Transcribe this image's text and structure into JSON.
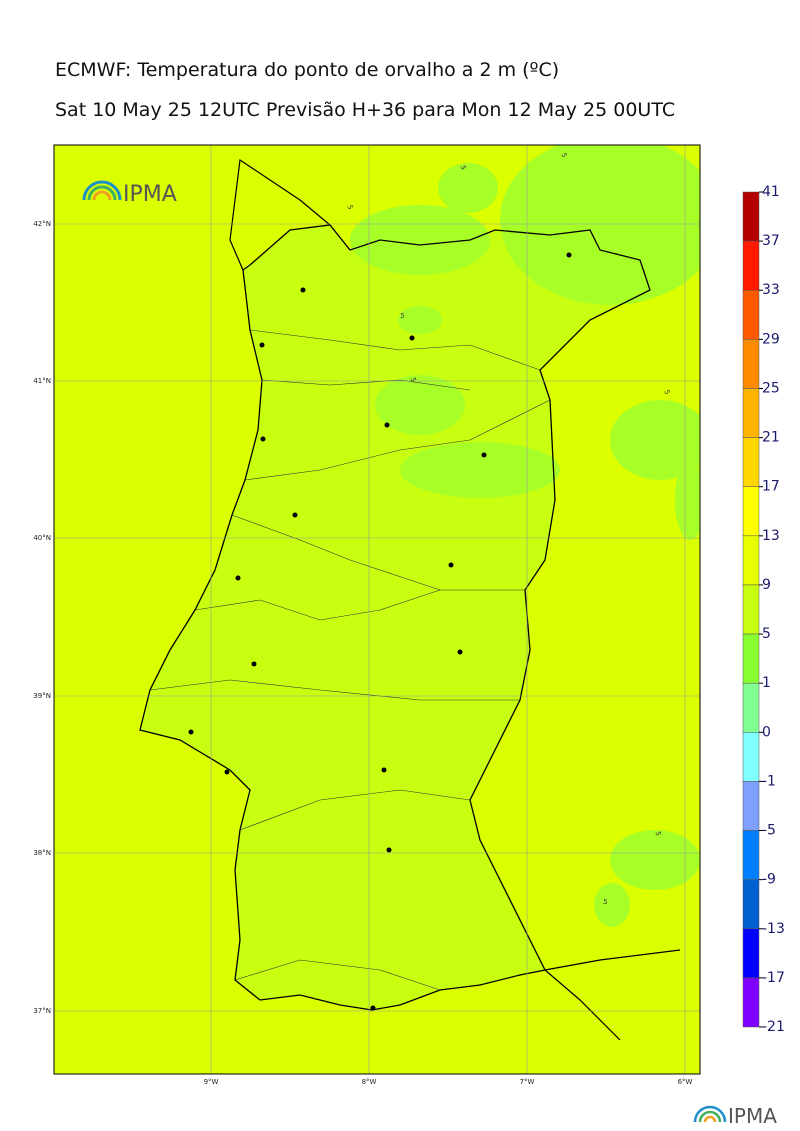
{
  "header": {
    "title": "ECMWF: Temperatura do ponto de orvalho a 2 m (ºC)",
    "subtitle": "Sat 10 May 25 12UTC Previsão H+36 para Mon 12 May 25 00UTC"
  },
  "map": {
    "logo": "IPMA",
    "lat_labels": [
      "42°N",
      "41°N",
      "40°N",
      "39°N",
      "38°N",
      "37°N"
    ],
    "lon_labels": [
      "9°W",
      "8°W",
      "7°W",
      "6°W"
    ],
    "contour_labels": [
      "5",
      "5",
      "5",
      "5",
      "5",
      "5",
      "5",
      "5"
    ],
    "colorbar": {
      "ticks": [
        41,
        37,
        33,
        29,
        25,
        21,
        17,
        13,
        9,
        5,
        1,
        0,
        -1,
        -5,
        -9,
        -13,
        -17,
        -21
      ],
      "colors": [
        "#b40000",
        "#ff1a00",
        "#ff5a00",
        "#ff8c00",
        "#ffb400",
        "#ffd700",
        "#ffff00",
        "#e8ff00",
        "#c8ff10",
        "#88ff30",
        "#80ff90",
        "#80ffff",
        "#80a0ff",
        "#0080ff",
        "#0060d0",
        "#0000ff",
        "#8000ff"
      ]
    }
  },
  "footer": {
    "logo": "IPMA"
  }
}
